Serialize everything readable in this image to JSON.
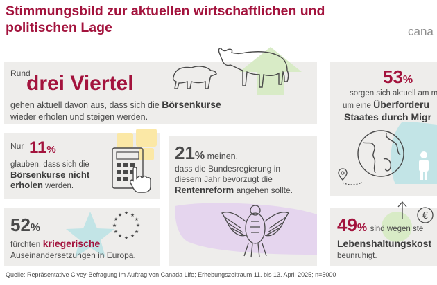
{
  "header": {
    "title_line1": "Stimmungsbild zur aktuellen wirtschaftlichen und",
    "title_line2": "politischen Lage",
    "brand": "cana"
  },
  "cards": {
    "card1": {
      "pre": "Rund",
      "big": "drei Viertel",
      "line1_pre": "gehen aktuell davon aus, dass sich die ",
      "line1_bold": "Börsenkurse",
      "line2": "wieder erholen und steigen werden."
    },
    "card2": {
      "pre": "Nur",
      "num": "11",
      "pct": "%",
      "line1": "glauben, dass sich die",
      "line2_bold": "Börsenkurse nicht",
      "line3_bold": "erholen",
      "line3_rest": " werden."
    },
    "card3": {
      "num": "21",
      "pct": "%",
      "after": "meinen,",
      "line1": "dass die Bundesregierung in",
      "line2": "diesem Jahr bevorzugt die",
      "line3_bold": "Rentenreform",
      "line3_rest": " angehen sollte."
    },
    "card4": {
      "num": "52",
      "pct": "%",
      "line1_pre": "fürchten ",
      "line1_bold": "kriegerische",
      "line2": "Auseinandersetzungen in Europa."
    },
    "card5": {
      "num": "53",
      "pct": "%",
      "line1": "sorgen sich aktuell am m",
      "line2_pre": "um eine ",
      "line2_bold": "Überforderu",
      "line3_bold": "Staates durch Migr"
    },
    "card6": {
      "num": "49",
      "pct": "%",
      "after": "sind wegen ste",
      "line1_bold": "Lebenshaltungskost",
      "line2": "beunruhigt."
    }
  },
  "footer": {
    "source": "Quelle: Repräsentative Civey-Befragung im Auftrag von Canada Life; Erhebungszeitraum 11. bis 13. April 2025; n=5000"
  },
  "colors": {
    "accent": "#a3133d",
    "card_bg": "#eeedeb",
    "green": "#d8ebc6",
    "teal": "#c2e4e6",
    "yellow": "#fbe8a6",
    "lavender": "#e5d5ee"
  },
  "icons": [
    "bear-icon",
    "bull-icon",
    "up-arrow-icon",
    "calculator-icon",
    "hand-icon",
    "star-icon",
    "eu-stars-icon",
    "eagle-icon",
    "globe-icon",
    "location-pin-icon",
    "person-icon",
    "euro-coin-icon"
  ]
}
